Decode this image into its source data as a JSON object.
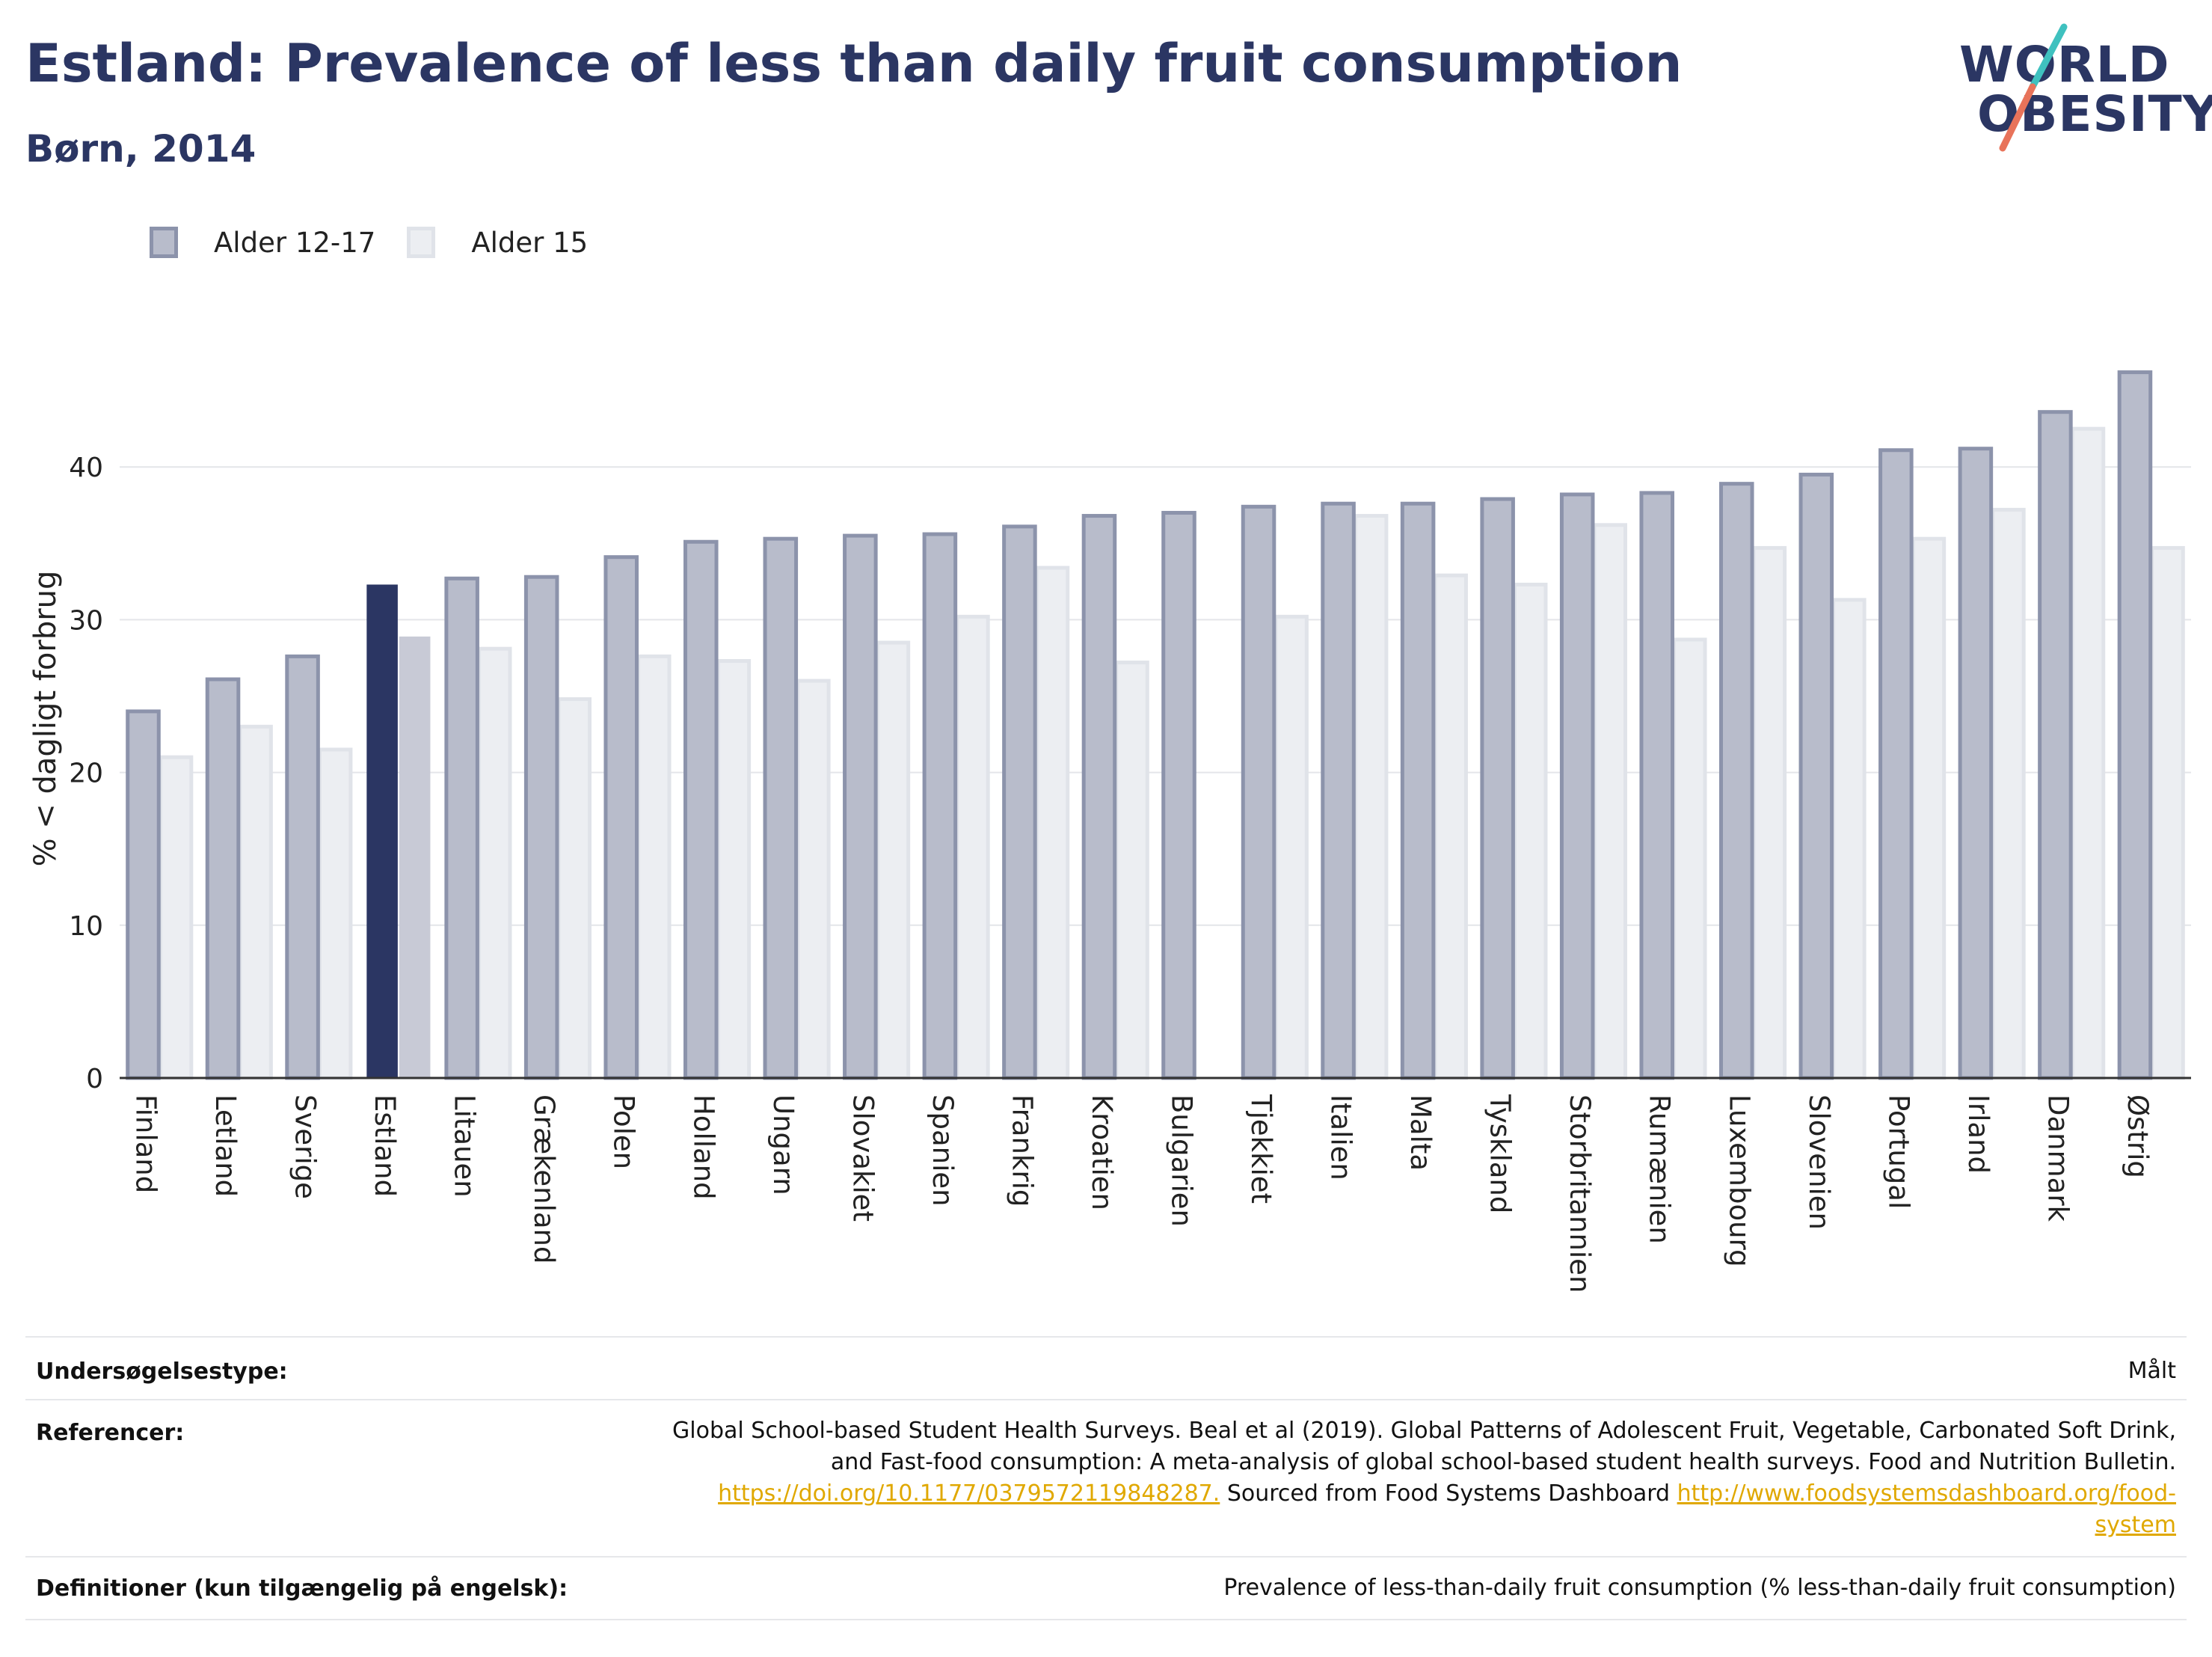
{
  "header": {
    "title": "Estland: Prevalence of less than daily fruit consumption",
    "subtitle": "Børn, 2014"
  },
  "logo": {
    "line1": "WORLD",
    "line2": "OBESITY"
  },
  "colors": {
    "highlight_primary": "#2b3663",
    "highlight_secondary": "#c8cad6",
    "series1_fill": "#b8bccb",
    "series1_stroke": "#8c93ab",
    "series2_fill": "#eceef2",
    "series2_stroke": "#e0e3e9",
    "logo_teal": "#3fc1bf",
    "logo_coral": "#e8735a"
  },
  "chart_data": {
    "type": "bar",
    "categories": [
      "Finland",
      "Letland",
      "Sverige",
      "Estland",
      "Litauen",
      "Grækenland",
      "Polen",
      "Holland",
      "Ungarn",
      "Slovakiet",
      "Spanien",
      "Frankrig",
      "Kroatien",
      "Bulgarien",
      "Tjekkiet",
      "Italien",
      "Malta",
      "Tyskland",
      "Storbritannien",
      "Rumænien",
      "Luxembourg",
      "Slovenien",
      "Portugal",
      "Irland",
      "Danmark",
      "Østrig"
    ],
    "series": [
      {
        "name": "Alder 12-17",
        "values": [
          24.0,
          26.1,
          27.6,
          32.3,
          32.7,
          32.8,
          34.1,
          35.1,
          35.3,
          35.5,
          35.6,
          36.1,
          36.8,
          37.0,
          37.4,
          37.6,
          37.6,
          37.9,
          38.2,
          38.3,
          38.9,
          39.5,
          41.1,
          41.2,
          43.6,
          46.2
        ]
      },
      {
        "name": "Alder 15",
        "values": [
          21.0,
          23.0,
          21.5,
          28.9,
          28.1,
          24.8,
          27.6,
          27.3,
          26.0,
          28.5,
          30.2,
          33.4,
          27.2,
          null,
          30.2,
          36.8,
          32.9,
          32.3,
          36.2,
          28.7,
          34.7,
          31.3,
          35.3,
          37.2,
          42.5,
          34.7
        ]
      }
    ],
    "highlight_category": "Estland",
    "ylabel": "% < dagligt forbrug",
    "xlabel": "",
    "ylim": [
      0,
      50
    ],
    "yticks": [
      0,
      10,
      20,
      30,
      40
    ],
    "grid": true,
    "legend_position": "top-left"
  },
  "meta": {
    "survey_type_label": "Undersøgelsestype:",
    "survey_type_value": "Målt",
    "references_label": "Referencer:",
    "references_text_1": "Global School-based Student Health Surveys. Beal et al (2019). Global Patterns of Adolescent Fruit, Vegetable, Carbonated Soft Drink,",
    "references_text_2": "and Fast-food consumption: A meta-analysis of global school-based student health surveys. Food and Nutrition Bulletin.",
    "references_link_1": "https://doi.org/10.1177/0379572119848287.",
    "references_text_3": " Sourced from Food Systems Dashboard ",
    "references_link_2a": "http://www.foodsystemsdashboard.org/food-",
    "references_link_2b": "system",
    "definitions_label": "Definitioner (kun tilgængelig på engelsk):",
    "definitions_value": "Prevalence of less-than-daily fruit consumption (% less-than-daily fruit consumption)"
  }
}
